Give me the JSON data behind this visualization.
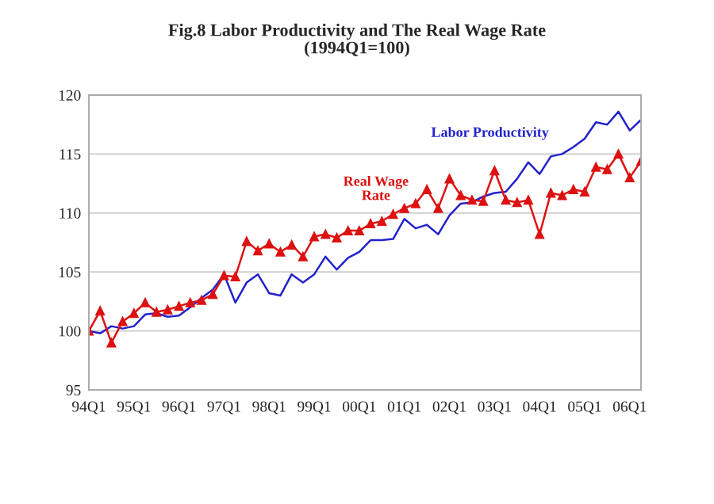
{
  "chart_data": {
    "type": "line",
    "title": "Fig.8 Labor Productivity and The Real Wage Rate",
    "subtitle": "(1994Q1=100)",
    "categories": [
      "94Q1",
      null,
      null,
      null,
      "95Q1",
      null,
      null,
      null,
      "96Q1",
      null,
      null,
      null,
      "97Q1",
      null,
      null,
      null,
      "98Q1",
      null,
      null,
      null,
      "99Q1",
      null,
      null,
      null,
      "00Q1",
      null,
      null,
      null,
      "01Q1",
      null,
      null,
      null,
      "02Q1",
      null,
      null,
      null,
      "03Q1",
      null,
      null,
      null,
      "04Q1",
      null,
      null,
      null,
      "05Q1",
      null,
      null,
      null,
      "06Q1",
      null
    ],
    "series": [
      {
        "name": "Labor Productivity",
        "color": "#2222cc",
        "marker": "none",
        "values": [
          100.0,
          99.8,
          100.4,
          100.2,
          100.4,
          101.4,
          101.5,
          101.2,
          101.3,
          102.0,
          102.8,
          103.5,
          104.8,
          102.4,
          104.1,
          104.8,
          103.2,
          103.0,
          104.8,
          104.1,
          104.8,
          106.3,
          105.2,
          106.2,
          106.7,
          107.7,
          107.7,
          107.8,
          109.5,
          108.7,
          109.0,
          108.2,
          109.8,
          110.8,
          110.9,
          111.4,
          111.7,
          111.8,
          112.9,
          114.3,
          113.3,
          114.8,
          115.0,
          115.6,
          116.3,
          117.7,
          117.5,
          118.6,
          117.0,
          117.9
        ]
      },
      {
        "name": "Real Wage Rate",
        "color": "#dd1111",
        "marker": "triangle",
        "values": [
          100.0,
          101.7,
          99.0,
          100.8,
          101.5,
          102.4,
          101.6,
          101.8,
          102.1,
          102.4,
          102.6,
          103.1,
          104.7,
          104.6,
          107.6,
          106.8,
          107.4,
          106.7,
          107.3,
          106.3,
          108.0,
          108.2,
          107.9,
          108.5,
          108.5,
          109.1,
          109.3,
          109.9,
          110.4,
          110.8,
          112.0,
          110.4,
          112.9,
          111.5,
          111.1,
          111.0,
          113.6,
          111.1,
          110.9,
          111.1,
          108.2,
          111.7,
          111.5,
          112.0,
          111.8,
          113.9,
          113.7,
          115.0,
          113.0,
          114.4
        ]
      }
    ],
    "ylim": [
      95,
      120
    ],
    "yticks": [
      95,
      100,
      105,
      110,
      115,
      120
    ],
    "grid": "y",
    "legend": false,
    "line_style": "solid"
  }
}
